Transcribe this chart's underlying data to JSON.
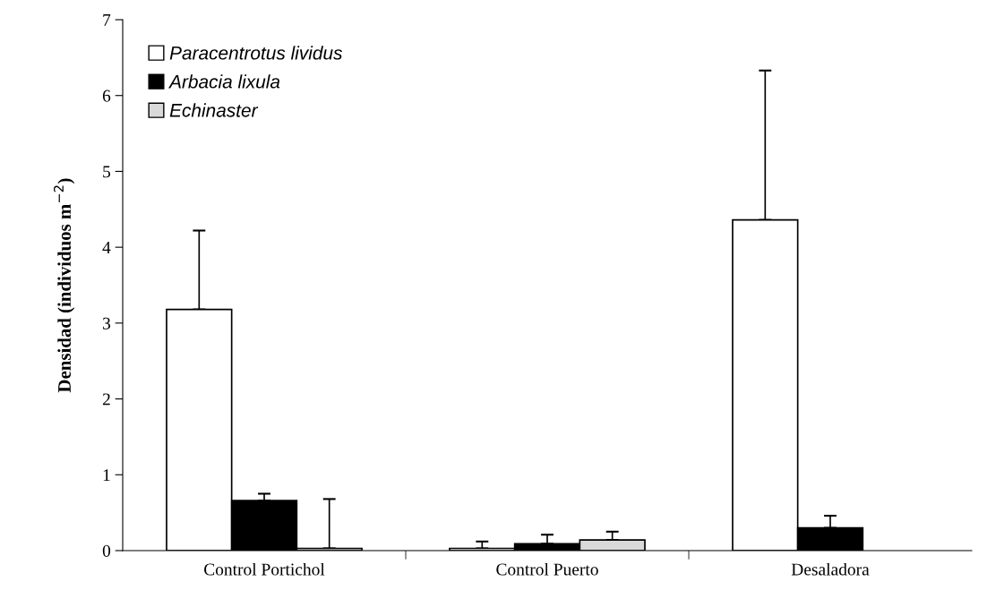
{
  "chart_data": {
    "type": "bar",
    "ylabel": "Densidad (individuos m$^{−2}$)",
    "categories": [
      "Control Portichol",
      "Control Puerto",
      "Desaladora"
    ],
    "series": [
      {
        "name": "Paracentrotus lividus",
        "color": "#ffffff",
        "values": [
          3.18,
          0.03,
          4.36
        ],
        "errors": [
          [
            3.18,
            4.22
          ],
          [
            0.03,
            0.12
          ],
          [
            4.36,
            6.33
          ]
        ]
      },
      {
        "name": "Arbacia lixula",
        "color": "#000000",
        "values": [
          0.66,
          0.09,
          0.3
        ],
        "errors": [
          [
            0.66,
            0.75
          ],
          [
            0.09,
            0.21
          ],
          [
            0.3,
            0.46
          ]
        ]
      },
      {
        "name": "Echinaster",
        "color": "#d9d9d9",
        "values": [
          0.03,
          0.14,
          null
        ],
        "errors": [
          [
            0.03,
            0.68
          ],
          [
            0.14,
            0.25
          ],
          null
        ]
      }
    ],
    "ylim": [
      0,
      7
    ],
    "yticks": [
      0,
      1,
      2,
      3,
      4,
      5,
      6,
      7
    ],
    "grid": false,
    "legend": "top left"
  }
}
